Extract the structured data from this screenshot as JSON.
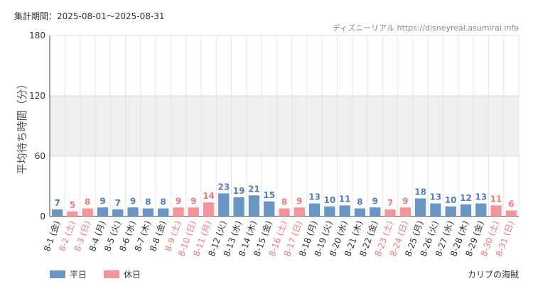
{
  "header": {
    "period": "集計期間：2025-08-01〜2025-08-31",
    "source": "ディズニーリアル https://disneyreal.asumirai.info"
  },
  "footer": {
    "park": "カリブの海賊"
  },
  "colors": {
    "weekday": "#6a96c6",
    "holiday": "#f5949a",
    "weekday_label": "#4f7db5",
    "holiday_label": "#f0787f",
    "band": "#efefef",
    "grid": "#e6e6e6"
  },
  "chart_data": {
    "type": "bar",
    "ylabel": "平均待ち時間（分）",
    "xlabel": "",
    "ylim": [
      0,
      180
    ],
    "yticks": [
      0,
      60,
      120,
      180
    ],
    "shaded_band": [
      60,
      120
    ],
    "legend": [
      {
        "name": "平日",
        "key": "weekday"
      },
      {
        "name": "休日",
        "key": "holiday"
      }
    ],
    "categories": [
      "8-1 (金)",
      "8-2 (土)",
      "8-3 (日)",
      "8-4 (月)",
      "8-5 (火)",
      "8-6 (水)",
      "8-7 (木)",
      "8-8 (金)",
      "8-9 (土)",
      "8-10 (日)",
      "8-11 (月)",
      "8-12 (火)",
      "8-13 (水)",
      "8-14 (木)",
      "8-15 (金)",
      "8-16 (土)",
      "8-17 (日)",
      "8-18 (月)",
      "8-19 (火)",
      "8-20 (水)",
      "8-21 (木)",
      "8-22 (金)",
      "8-23 (土)",
      "8-24 (日)",
      "8-25 (月)",
      "8-26 (火)",
      "8-27 (水)",
      "8-28 (木)",
      "8-29 (金)",
      "8-30 (土)",
      "8-31 (日)"
    ],
    "values": [
      7,
      5,
      8,
      9,
      7,
      9,
      8,
      8,
      9,
      9,
      14,
      23,
      19,
      21,
      15,
      8,
      9,
      13,
      10,
      11,
      8,
      9,
      7,
      9,
      18,
      13,
      10,
      12,
      13,
      11,
      6
    ],
    "day_type": [
      "weekday",
      "holiday",
      "holiday",
      "weekday",
      "weekday",
      "weekday",
      "weekday",
      "weekday",
      "holiday",
      "holiday",
      "holiday",
      "weekday",
      "weekday",
      "weekday",
      "weekday",
      "holiday",
      "holiday",
      "weekday",
      "weekday",
      "weekday",
      "weekday",
      "weekday",
      "holiday",
      "holiday",
      "weekday",
      "weekday",
      "weekday",
      "weekday",
      "weekday",
      "holiday",
      "holiday"
    ]
  }
}
